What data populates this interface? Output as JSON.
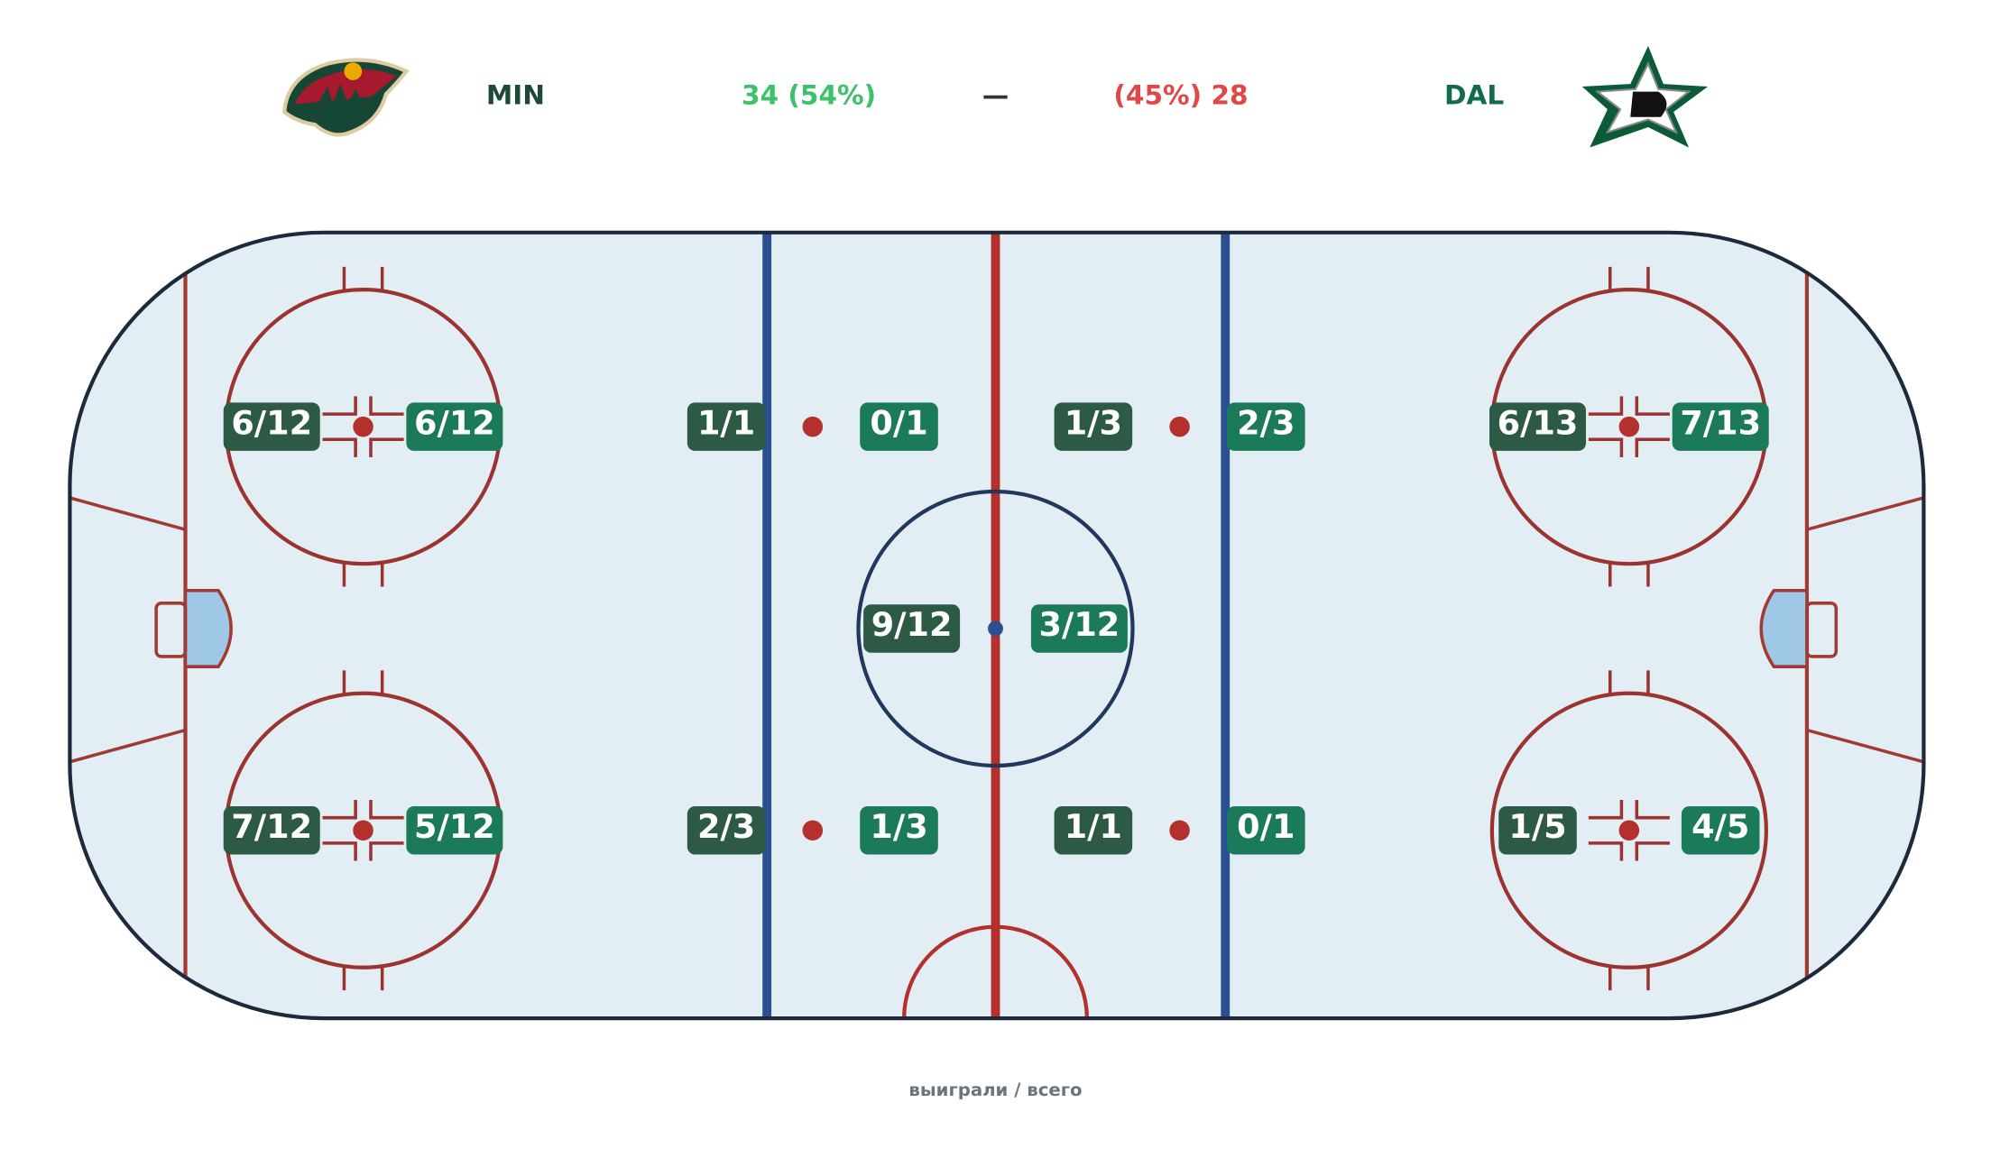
{
  "header": {
    "home": "MIN",
    "home_score": "34 (54%)",
    "separator": "—",
    "away_score": "(45%) 28",
    "away": "DAL"
  },
  "faceoffs": [
    {
      "left": "6/12",
      "right": "6/12"
    },
    {
      "left": "7/12",
      "right": "5/12"
    },
    {
      "left": "1/1",
      "right": "0/1"
    },
    {
      "left": "2/3",
      "right": "1/3"
    },
    {
      "left": "9/12",
      "right": "3/12"
    },
    {
      "left": "1/3",
      "right": "2/3"
    },
    {
      "left": "1/1",
      "right": "0/1"
    },
    {
      "left": "6/13",
      "right": "7/13"
    },
    {
      "left": "1/5",
      "right": "4/5"
    }
  ],
  "footer": "выиграли / всего"
}
